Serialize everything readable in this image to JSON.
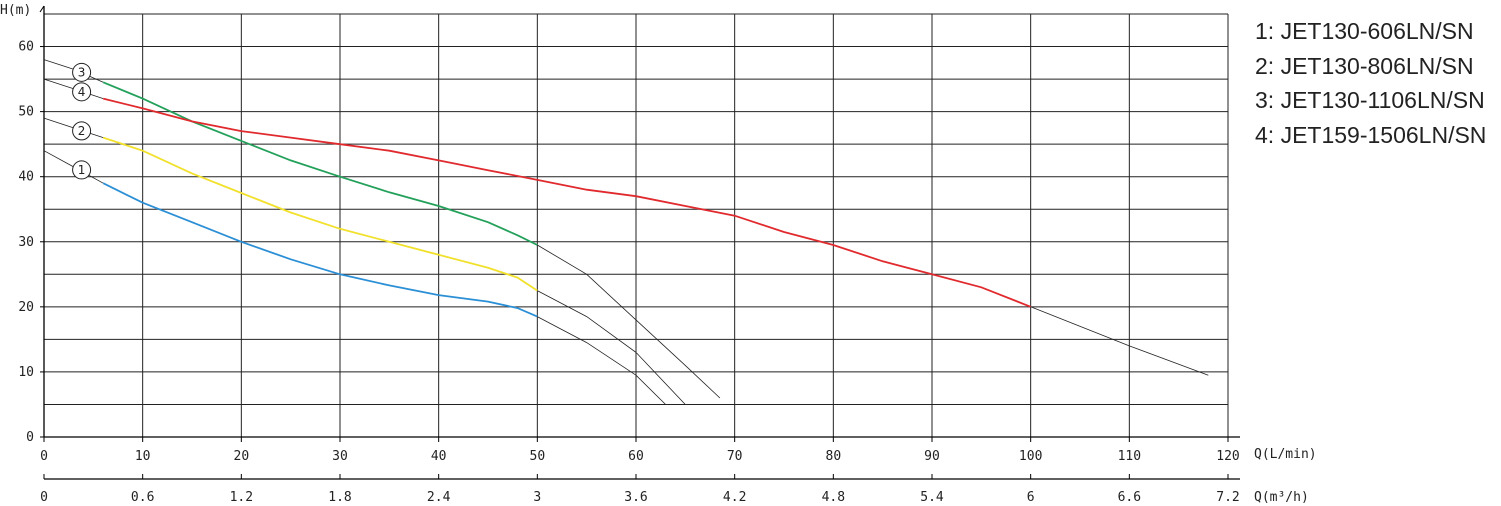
{
  "chart_data": {
    "type": "line",
    "title": "",
    "ylabel": "H(m)",
    "xlabel_top": "Q(L/min)",
    "xlabel_bottom": "Q(m³/h)",
    "ylim": [
      0,
      65
    ],
    "xlim": [
      0,
      120
    ],
    "y_ticks": [
      0,
      10,
      20,
      30,
      40,
      50,
      60
    ],
    "x_ticks": [
      0,
      10,
      20,
      30,
      40,
      50,
      60,
      70,
      80,
      90,
      100,
      110,
      120
    ],
    "x_ticks_m3h": [
      "0",
      "0.6",
      "1.2",
      "1.8",
      "2.4",
      "3",
      "3.6",
      "4.2",
      "4.8",
      "5.4",
      "6",
      "6.6",
      "7.2"
    ],
    "grid": true,
    "legend_position": "right",
    "series": [
      {
        "id": "1",
        "name": "JET130-606LN/SN",
        "color": "#2b8fd6",
        "values": [
          [
            6,
            39
          ],
          [
            10,
            36
          ],
          [
            15,
            33
          ],
          [
            20,
            30
          ],
          [
            25,
            27.3
          ],
          [
            30,
            25
          ],
          [
            35,
            23.3
          ],
          [
            40,
            21.8
          ],
          [
            45,
            20.8
          ],
          [
            48,
            19.8
          ],
          [
            50,
            18.5
          ]
        ],
        "extension": [
          [
            0,
            44
          ],
          [
            3,
            41.5
          ],
          [
            6,
            39
          ]
        ],
        "extension_end": [
          [
            50,
            18.5
          ],
          [
            55,
            14.5
          ],
          [
            60,
            9.5
          ],
          [
            63,
            5
          ]
        ]
      },
      {
        "id": "2",
        "name": "JET130-806LN/SN",
        "color": "#f1e12c",
        "values": [
          [
            6,
            46
          ],
          [
            10,
            44
          ],
          [
            15,
            40.5
          ],
          [
            20,
            37.5
          ],
          [
            25,
            34.5
          ],
          [
            30,
            32
          ],
          [
            35,
            30
          ],
          [
            40,
            28
          ],
          [
            45,
            26
          ],
          [
            48,
            24.5
          ],
          [
            50,
            22.5
          ]
        ],
        "extension": [
          [
            0,
            49
          ],
          [
            3,
            47.5
          ],
          [
            6,
            46
          ]
        ],
        "extension_end": [
          [
            50,
            22.5
          ],
          [
            55,
            18.5
          ],
          [
            60,
            13
          ],
          [
            65,
            5
          ]
        ]
      },
      {
        "id": "3",
        "name": "JET130-1106LN/SN",
        "color": "#23a05a",
        "values": [
          [
            6,
            54.5
          ],
          [
            10,
            52
          ],
          [
            15,
            48.5
          ],
          [
            20,
            45.5
          ],
          [
            25,
            42.5
          ],
          [
            30,
            40
          ],
          [
            35,
            37.6
          ],
          [
            40,
            35.5
          ],
          [
            45,
            33
          ],
          [
            48,
            31
          ],
          [
            50,
            29.5
          ]
        ],
        "extension": [
          [
            0,
            58
          ],
          [
            3,
            56.5
          ],
          [
            6,
            54.5
          ]
        ],
        "extension_end": [
          [
            50,
            29.5
          ],
          [
            55,
            25
          ],
          [
            60,
            18
          ],
          [
            65,
            11
          ],
          [
            68.5,
            6
          ]
        ]
      },
      {
        "id": "4",
        "name": "JET159-1506LN/SN",
        "color": "#e02a2e",
        "values": [
          [
            6,
            52
          ],
          [
            10,
            50.5
          ],
          [
            15,
            48.5
          ],
          [
            20,
            47
          ],
          [
            25,
            46
          ],
          [
            30,
            45
          ],
          [
            35,
            44
          ],
          [
            40,
            42.5
          ],
          [
            45,
            41
          ],
          [
            50,
            39.5
          ],
          [
            55,
            38
          ],
          [
            60,
            37
          ],
          [
            65,
            35.5
          ],
          [
            70,
            34
          ],
          [
            75,
            31.5
          ],
          [
            80,
            29.5
          ],
          [
            85,
            27
          ],
          [
            90,
            25
          ],
          [
            95,
            23
          ],
          [
            100,
            20
          ]
        ],
        "extension": [
          [
            0,
            55
          ],
          [
            3,
            53.5
          ],
          [
            6,
            52
          ]
        ],
        "extension_end": [
          [
            100,
            20
          ],
          [
            110,
            14
          ],
          [
            118,
            9.5
          ]
        ]
      }
    ]
  },
  "legend": {
    "items": [
      "1: JET130-606LN/SN",
      "2: JET130-806LN/SN",
      "3: JET130-1106LN/SN",
      "4: JET159-1506LN/SN"
    ]
  }
}
